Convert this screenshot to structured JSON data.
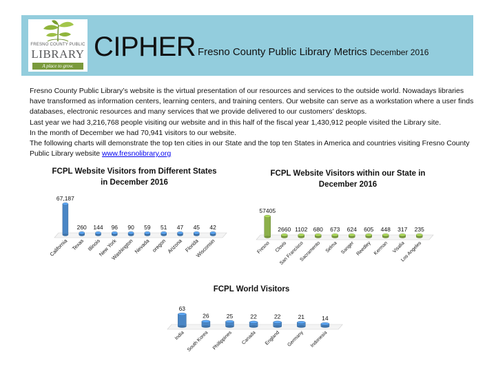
{
  "header": {
    "logo": {
      "line1": "FRESNO COUNTY PUBLIC",
      "line2": "LIBRARY",
      "tagline": "A place to grow."
    },
    "title": "CIPHER",
    "subtitle": "Fresno County Public Library Metrics",
    "month": "December 2016"
  },
  "body": {
    "p1": "Fresno County Public Library’s website is the virtual presentation of our resources and services to the outside world. Nowadays libraries have transformed as information centers, learning centers, and training centers. Our website can serve as a workstation where a user finds databases, electronic resources and many services that we provide delivered to our customers’ desktops.",
    "p2": "Last year we had 3,216,768 people visiting our website and in this half of the fiscal year 1,430,912 people visited the Library site.",
    "p3": "In the month of December we had 70,941 visitors to our website.",
    "p4": "The following charts will demonstrate the top ten cities in our State and the top ten States in America and countries visiting Fresno County Public Library website ",
    "link": "www.fresnolibrary.org"
  },
  "colors": {
    "header_bg": "#93cddd",
    "blue_bar": "#4a86c5",
    "green_bar": "#8cb04a"
  },
  "chart_data": [
    {
      "type": "bar",
      "title": "FCPL Website Visitors  from Different States in December 2016",
      "categories": [
        "California",
        "Texas",
        "Illinois",
        "New York",
        "Washington",
        "Nevada",
        "oregon",
        "Arizona",
        "Florida",
        "Wisconsin"
      ],
      "values": [
        67187,
        260,
        144,
        96,
        90,
        59,
        51,
        47,
        45,
        42
      ],
      "labels": [
        "67,187",
        "260",
        "144",
        "96",
        "90",
        "59",
        "51",
        "47",
        "45",
        "42"
      ]
    },
    {
      "type": "bar",
      "title": "FCPL Website Visitors within our State in December 2016",
      "categories": [
        "Fresno",
        "Clovis",
        "San Francisco",
        "Sacramento",
        "Selma",
        "Sanger",
        "Reedley",
        "Kerman",
        "Visalia",
        "Los Angeles"
      ],
      "values": [
        57405,
        2660,
        1102,
        680,
        673,
        624,
        605,
        448,
        317,
        235
      ],
      "labels": [
        "57405",
        "2660",
        "1102",
        "680",
        "673",
        "624",
        "605",
        "448",
        "317",
        "235"
      ]
    },
    {
      "type": "bar",
      "title": "FCPL World Visitors",
      "categories": [
        "India",
        "South Korea",
        "Phillippines",
        "Canada",
        "England",
        "Germany",
        "Indonesia"
      ],
      "values": [
        63,
        26,
        25,
        22,
        22,
        21,
        14
      ],
      "labels": [
        "63",
        "26",
        "25",
        "22",
        "22",
        "21",
        "14"
      ]
    }
  ]
}
